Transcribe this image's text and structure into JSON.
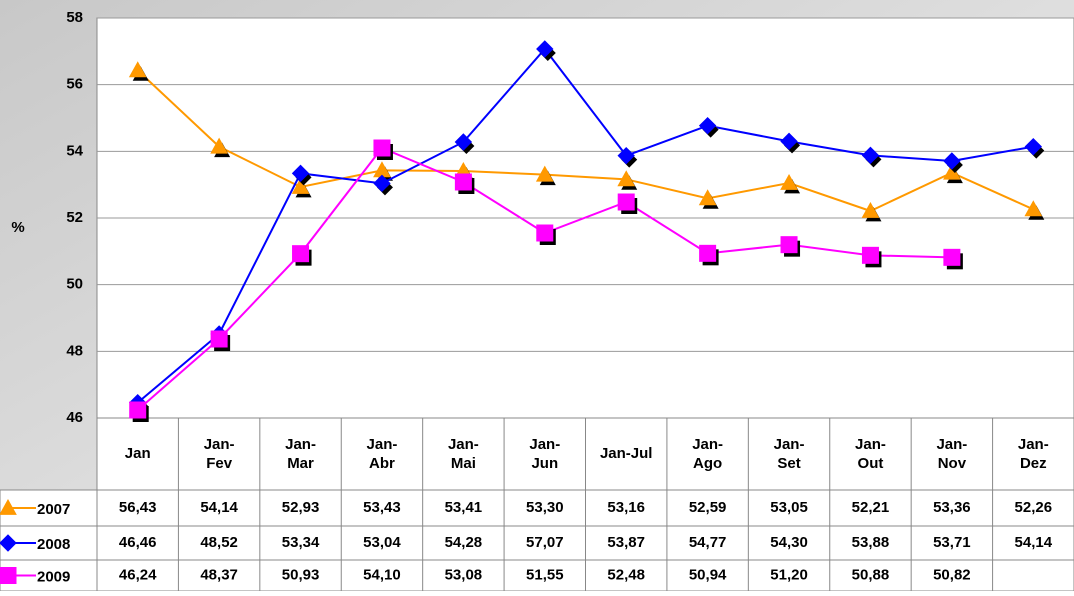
{
  "chart_data": {
    "type": "line",
    "y_label": "%",
    "categories": [
      "Jan",
      "Jan-Fev",
      "Jan-Mar",
      "Jan-Abr",
      "Jan-Mai",
      "Jan-Jun",
      "Jan-Jul",
      "Jan-Ago",
      "Jan-Set",
      "Jan-Out",
      "Jan-Nov",
      "Jan-Dez"
    ],
    "series": [
      {
        "name": "2007",
        "color": "#ff9900",
        "marker": "triangle",
        "values": [
          56.43,
          54.14,
          52.93,
          53.43,
          53.41,
          53.3,
          53.16,
          52.59,
          53.05,
          52.21,
          53.36,
          52.26
        ],
        "value_labels": [
          "56,43",
          "54,14",
          "52,93",
          "53,43",
          "53,41",
          "53,30",
          "53,16",
          "52,59",
          "53,05",
          "52,21",
          "53,36",
          "52,26"
        ]
      },
      {
        "name": "2008",
        "color": "#0000ff",
        "marker": "diamond",
        "values": [
          46.46,
          48.52,
          53.34,
          53.04,
          54.28,
          57.07,
          53.87,
          54.77,
          54.3,
          53.88,
          53.71,
          54.14
        ],
        "value_labels": [
          "46,46",
          "48,52",
          "53,34",
          "53,04",
          "54,28",
          "57,07",
          "53,87",
          "54,77",
          "54,30",
          "53,88",
          "53,71",
          "54,14"
        ]
      },
      {
        "name": "2009",
        "color": "#ff00ff",
        "marker": "square",
        "values": [
          46.24,
          48.37,
          50.93,
          54.1,
          53.08,
          51.55,
          52.48,
          50.94,
          51.2,
          50.88,
          50.82,
          null
        ],
        "value_labels": [
          "46,24",
          "48,37",
          "50,93",
          "54,10",
          "53,08",
          "51,55",
          "52,48",
          "50,94",
          "51,20",
          "50,88",
          "50,82",
          null
        ]
      }
    ],
    "ylim": [
      46,
      58
    ],
    "yticks": [
      46,
      48,
      50,
      52,
      54,
      56,
      58
    ],
    "grid": true
  }
}
